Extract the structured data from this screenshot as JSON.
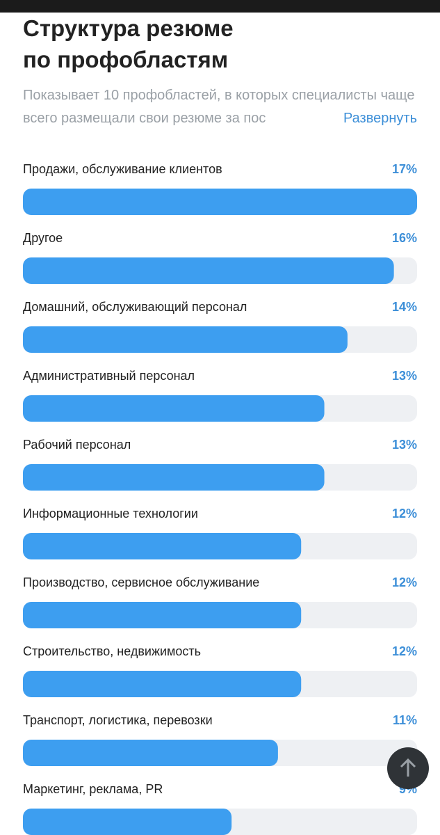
{
  "chart_data": {
    "type": "bar",
    "orientation": "horizontal",
    "title": "Структура резюме по профобластям",
    "subtitle": "Показывает 10 профобластей, в которых специалисты чаще всего размещали свои резюме за пос",
    "link": "Развернуть",
    "categories": [
      "Продажи, обслуживание клиентов",
      "Другое",
      "Домашний, обслуживающий персонал",
      "Административный персонал",
      "Рабочий персонал",
      "Информационные технологии",
      "Производство, сервисное обслуживание",
      "Строительство, недвижимость",
      "Транспорт, логистика, перевозки",
      "Маркетинг, реклама, PR"
    ],
    "values": [
      17,
      16,
      14,
      13,
      13,
      12,
      12,
      12,
      11,
      9
    ],
    "value_labels": [
      "17%",
      "16%",
      "14%",
      "13%",
      "13%",
      "12%",
      "12%",
      "12%",
      "11%",
      "9%"
    ],
    "xlim": [
      0,
      17
    ],
    "color": "#3d9ef0"
  }
}
